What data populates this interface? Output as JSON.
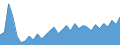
{
  "chart_data": {
    "type": "area",
    "series": [
      {
        "type": "area",
        "color": "#5b9fd4",
        "values": [
          20,
          25,
          80,
          55,
          18,
          5,
          8,
          18,
          10,
          22,
          12,
          20,
          28,
          35,
          22,
          30,
          38,
          28,
          42,
          32,
          38,
          35,
          28,
          40,
          32,
          42,
          35,
          48,
          40,
          55
        ]
      },
      {
        "type": "line",
        "color": "#4a90c4",
        "values": [
          20,
          25,
          80,
          55,
          18,
          5,
          8,
          18,
          10,
          22,
          12,
          20,
          28,
          35,
          22,
          30,
          38,
          28,
          42,
          32,
          38,
          35,
          28,
          40,
          32,
          42,
          35,
          48,
          40,
          55
        ]
      }
    ],
    "xlim": [
      0,
      29
    ],
    "ylim": [
      0,
      86.4
    ],
    "tick_labels": false,
    "grid": false
  }
}
